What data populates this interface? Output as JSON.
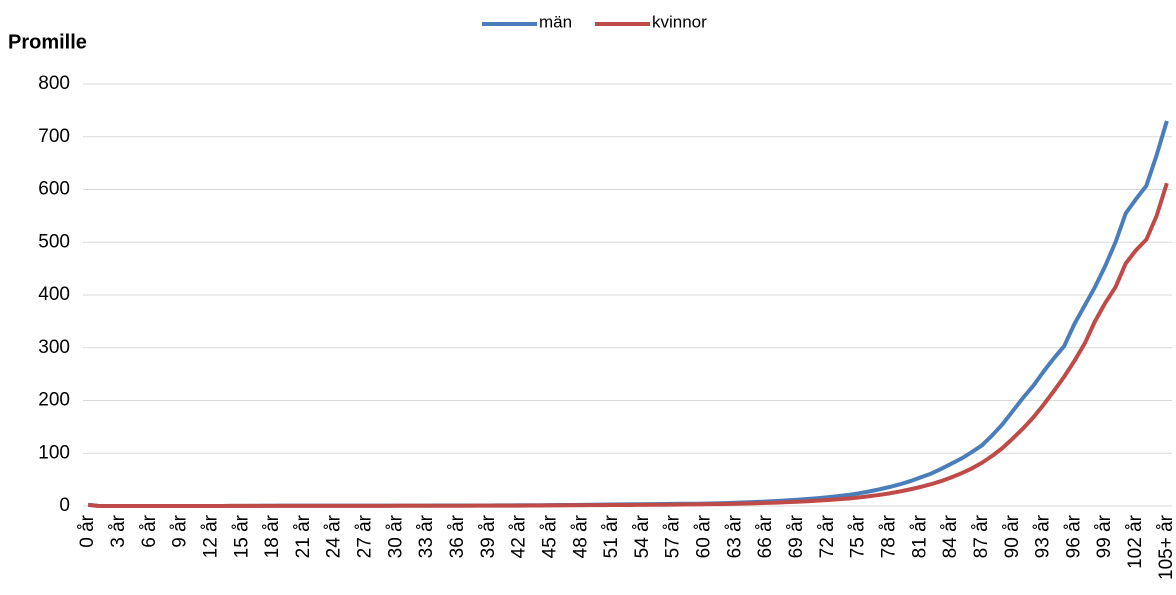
{
  "chart_data": {
    "type": "line",
    "y_label": "Promille",
    "categories": [
      "0 år",
      null,
      null,
      "3 år",
      null,
      null,
      "6 år",
      null,
      null,
      "9 år",
      null,
      null,
      "12 år",
      null,
      null,
      "15 år",
      null,
      null,
      "18 år",
      null,
      null,
      "21 år",
      null,
      null,
      "24 år",
      null,
      null,
      "27 år",
      null,
      null,
      "30 år",
      null,
      null,
      "33 år",
      null,
      null,
      "36 år",
      null,
      null,
      "39 år",
      null,
      null,
      "42 år",
      null,
      null,
      "45 år",
      null,
      null,
      "48 år",
      null,
      null,
      "51 år",
      null,
      null,
      "54 år",
      null,
      null,
      "57 år",
      null,
      null,
      "60 år",
      null,
      null,
      "63 år",
      null,
      null,
      "66 år",
      null,
      null,
      "69 år",
      null,
      null,
      "72 år",
      null,
      null,
      "75 år",
      null,
      null,
      "78 år",
      null,
      null,
      "81 år",
      null,
      null,
      "84 år",
      null,
      null,
      "87 år",
      null,
      null,
      "90 år",
      null,
      null,
      "93 år",
      null,
      null,
      "96 år",
      null,
      null,
      "99 år",
      null,
      null,
      "102 år",
      null,
      null,
      "105+ år"
    ],
    "series": [
      {
        "name": "män",
        "color": "#4a7ebb",
        "values": [
          2.4,
          0.2,
          0.1,
          0.1,
          0.1,
          0.1,
          0.1,
          0.1,
          0.1,
          0.1,
          0.1,
          0.1,
          0.1,
          0.1,
          0.2,
          0.2,
          0.3,
          0.4,
          0.5,
          0.6,
          0.7,
          0.7,
          0.7,
          0.7,
          0.7,
          0.7,
          0.7,
          0.7,
          0.7,
          0.8,
          0.8,
          0.8,
          0.8,
          0.8,
          0.9,
          0.9,
          0.9,
          1.0,
          1.0,
          1.0,
          1.1,
          1.2,
          1.3,
          1.4,
          1.5,
          1.6,
          1.8,
          2.0,
          2.2,
          2.4,
          2.6,
          2.8,
          3.0,
          3.2,
          3.4,
          3.6,
          3.8,
          4.0,
          4.2,
          4.3,
          4.5,
          5,
          5.5,
          6.1,
          6.8,
          7.6,
          8.5,
          9.5,
          10.6,
          11.8,
          13.2,
          14.8,
          16.6,
          18.7,
          21,
          24,
          27.5,
          31.5,
          36,
          41,
          47,
          54,
          61,
          70,
          80,
          90,
          102,
          115,
          134,
          155,
          180,
          205,
          228,
          255,
          280,
          303,
          345,
          380,
          415,
          455,
          500,
          555,
          582,
          607,
          665,
          730
        ]
      },
      {
        "name": "kvinnor",
        "color": "#be4b48",
        "values": [
          2.0,
          0.1,
          0.1,
          0.1,
          0.1,
          0.1,
          0.1,
          0.1,
          0.1,
          0.1,
          0.1,
          0.1,
          0.1,
          0.1,
          0.2,
          0.2,
          0.2,
          0.2,
          0.2,
          0.2,
          0.3,
          0.3,
          0.3,
          0.3,
          0.3,
          0.3,
          0.3,
          0.3,
          0.3,
          0.3,
          0.4,
          0.4,
          0.4,
          0.4,
          0.4,
          0.5,
          0.5,
          0.5,
          0.6,
          0.6,
          0.7,
          0.7,
          0.8,
          0.9,
          1.0,
          1.1,
          1.2,
          1.3,
          1.4,
          1.6,
          1.7,
          1.8,
          1.9,
          2.0,
          2.1,
          2.3,
          2.4,
          2.6,
          2.8,
          3.0,
          3.2,
          3.5,
          3.9,
          4.3,
          4.8,
          5.3,
          5.9,
          6.5,
          7.3,
          8.1,
          9.0,
          10.1,
          11.3,
          12.7,
          14.3,
          16.2,
          18.4,
          21,
          24,
          27.5,
          31.5,
          36,
          41,
          47,
          54,
          62,
          71,
          82,
          95,
          110,
          128,
          147,
          168,
          192,
          218,
          245,
          275,
          308,
          350,
          385,
          415,
          460,
          485,
          505,
          550,
          612
        ]
      }
    ],
    "ylim": [
      0,
      800
    ],
    "yticks": [
      0,
      100,
      200,
      300,
      400,
      500,
      600,
      700,
      800
    ],
    "grid": true,
    "legend": "top"
  }
}
